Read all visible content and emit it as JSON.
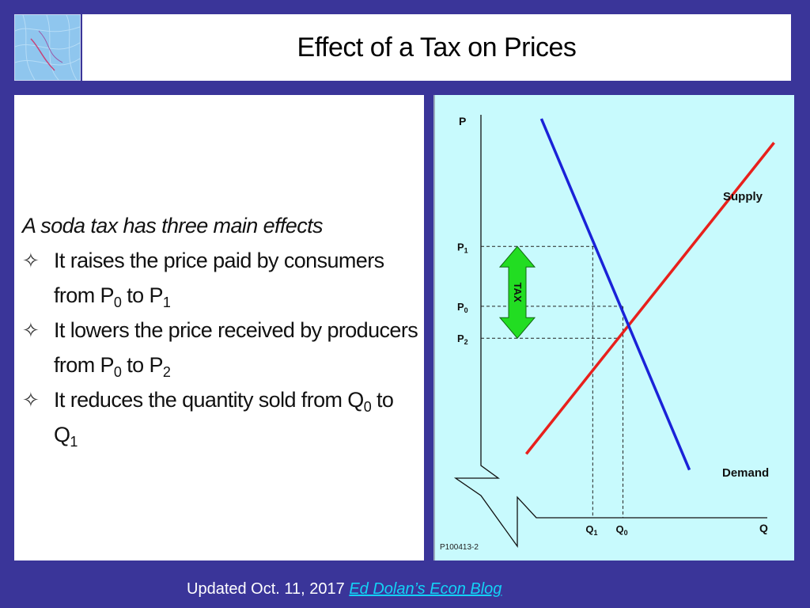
{
  "slide": {
    "title": "Effect of a Tax on Prices",
    "intro": "A soda tax has three main effects",
    "bullets": [
      {
        "text": "It raises the price paid by consumers from P",
        "sub1": "0",
        "mid": " to P",
        "sub2": "1",
        "tail": ""
      },
      {
        "text": "It lowers the price received by producers from P",
        "sub1": "0",
        "mid": " to P",
        "sub2": "2",
        "tail": ""
      },
      {
        "text": "It reduces the quantity sold from Q",
        "sub1": "0",
        "mid": " to Q",
        "sub2": "1",
        "tail": ""
      }
    ],
    "bullet_glyph": "✧",
    "footer_text": "Updated Oct. 11, 2017 ",
    "footer_link": "Ed Dolan’s Econ Blog"
  },
  "colors": {
    "background": "#3a3599",
    "chart_bg": "#c8fafd",
    "supply": "#e8201c",
    "demand": "#1a22d8",
    "tax_arrow": "#22dd22",
    "link": "#13d2f6"
  },
  "chart_data": {
    "type": "line",
    "title": "",
    "xlabel": "Q",
    "ylabel": "P",
    "xlim": [
      0,
      10
    ],
    "ylim": [
      0,
      10
    ],
    "series": [
      {
        "name": "Supply",
        "points": [
          [
            1.5,
            1.6
          ],
          [
            9.7,
            9.4
          ]
        ]
      },
      {
        "name": "Demand",
        "points": [
          [
            2.0,
            10.0
          ],
          [
            6.9,
            1.2
          ]
        ]
      }
    ],
    "equilibrium": {
      "x": 4.7,
      "y": 5.3
    },
    "price_levels": [
      {
        "label": "P",
        "sub": "1",
        "y": 6.8
      },
      {
        "label": "P",
        "sub": "0",
        "y": 5.3
      },
      {
        "label": "P",
        "sub": "2",
        "y": 4.5
      }
    ],
    "quantity_levels": [
      {
        "label": "Q",
        "sub": "1",
        "x": 3.7
      },
      {
        "label": "Q",
        "sub": "0",
        "x": 4.7
      }
    ],
    "tax_label": "TAX",
    "source_code": "P100413-2"
  }
}
